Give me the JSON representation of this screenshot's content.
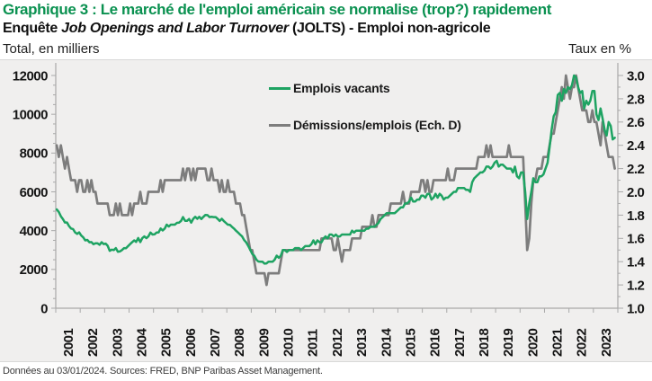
{
  "header": {
    "title": "Graphique 3 : Le marché de l'emploi américain se normalise (trop?) rapidement",
    "subtitle_prefix": "Enquête ",
    "subtitle_italic": "Job Openings and Labor Turnover",
    "subtitle_suffix": " (JOLTS) - Emploi non-agricole",
    "left_axis_caption": "Total, en milliers",
    "right_axis_caption": "Taux en %"
  },
  "footer": {
    "source_note": "Données au 03/01/2024. Sources: FRED, BNP Paribas Asset Management."
  },
  "colors": {
    "title_green": "#0a9150",
    "series_green": "#1ea362",
    "series_gray": "#7d7d7d",
    "axis": "#a9a9a9",
    "plot_background": "#f0efee"
  },
  "chart_data": {
    "type": "line",
    "title": "Graphique 3 : Le marché de l'emploi américain se normalise (trop?) rapidement",
    "subtitle": "Enquête Job Openings and Labor Turnover (JOLTS) - Emploi non-agricole",
    "frequency": "monthly",
    "x_start": "2001-01",
    "x_end": "2023-11",
    "x_tick_labels": [
      "2001",
      "2002",
      "2003",
      "2004",
      "2005",
      "2006",
      "2007",
      "2008",
      "2009",
      "2010",
      "2011",
      "2012",
      "2013",
      "2014",
      "2015",
      "2016",
      "2017",
      "2018",
      "2019",
      "2020",
      "2021",
      "2022",
      "2023"
    ],
    "left_axis": {
      "label": "Total, en milliers",
      "min": 0,
      "max": 12000,
      "major_step": 2000,
      "minor_step": 500
    },
    "right_axis": {
      "label": "Taux en %",
      "min": 1.0,
      "max": 3.0,
      "major_step": 0.2,
      "minor_step": 0.1
    },
    "legend_position": "upper-center",
    "grid": false,
    "series": [
      {
        "name": "Emplois vacants",
        "axis": "left",
        "color": "#1ea362",
        "values": [
          5090,
          4960,
          4740,
          4600,
          4420,
          4420,
          4240,
          4110,
          4080,
          3910,
          3830,
          3910,
          3750,
          3650,
          3500,
          3520,
          3400,
          3410,
          3300,
          3350,
          3350,
          3270,
          3400,
          3310,
          3330,
          3220,
          2960,
          3020,
          3000,
          3100,
          2910,
          2930,
          3000,
          3100,
          3090,
          3200,
          3310,
          3400,
          3500,
          3420,
          3620,
          3410,
          3610,
          3700,
          3610,
          3700,
          3900,
          3800,
          3810,
          3900,
          3910,
          4110,
          4010,
          4110,
          4310,
          4210,
          4310,
          4310,
          4310,
          4400,
          4410,
          4500,
          4700,
          4510,
          4510,
          4600,
          4410,
          4610,
          4710,
          4610,
          4710,
          4600,
          4710,
          4810,
          4800,
          4700,
          4710,
          4700,
          4700,
          4610,
          4500,
          4610,
          4500,
          4400,
          4310,
          4300,
          4200,
          4110,
          4000,
          3900,
          3800,
          3700,
          3510,
          3400,
          3210,
          3010,
          2800,
          2700,
          2500,
          2410,
          2400,
          2400,
          2300,
          2310,
          2400,
          2400,
          2400,
          2500,
          2710,
          2600,
          2700,
          3000,
          3000,
          2900,
          3000,
          3000,
          3000,
          3100,
          3100,
          3100,
          3000,
          3100,
          3200,
          3200,
          3200,
          3300,
          3500,
          3300,
          3500,
          3400,
          3400,
          3600,
          3700,
          3600,
          3800,
          3800,
          3700,
          3800,
          3700,
          3700,
          3800,
          3800,
          3800,
          3800,
          3800,
          4000,
          3900,
          4000,
          4000,
          4000,
          4000,
          4000,
          4100,
          4100,
          4200,
          4200,
          4200,
          4300,
          4400,
          4600,
          4700,
          4800,
          4900,
          4900,
          4900,
          4900,
          4900,
          5000,
          5100,
          5200,
          5200,
          5400,
          5400,
          5500,
          5700,
          5500,
          5500,
          5600,
          5600,
          5800,
          5800,
          5700,
          5900,
          5900,
          5600,
          5700,
          5900,
          5700,
          5900,
          5800,
          5600,
          5700,
          5700,
          5800,
          5900,
          6000,
          6000,
          6200,
          6200,
          6200,
          6200,
          6100,
          6100,
          6000,
          6500,
          6700,
          6800,
          6900,
          7000,
          7000,
          7100,
          7300,
          7300,
          7200,
          7300,
          7500,
          7600,
          7300,
          7400,
          7400,
          7300,
          7200,
          7200,
          7200,
          7000,
          7300,
          6800,
          6700,
          7000,
          7000,
          6000,
          4600,
          5400,
          6000,
          6700,
          6500,
          6500,
          6800,
          6800,
          6900,
          7200,
          7500,
          8300,
          9200,
          9900,
          10100,
          11000,
          11100,
          10700,
          11300,
          11100,
          11400,
          11300,
          11500,
          12000,
          11900,
          11400,
          11100,
          11200,
          10300,
          10700,
          10500,
          10700,
          11200,
          11200,
          10000,
          9700,
          10300,
          9800,
          9200,
          8900,
          9600,
          9400,
          8700,
          8790
        ]
      },
      {
        "name": "Démissions/emplois (Ech. D)",
        "axis": "right",
        "color": "#7d7d7d",
        "values": [
          2.4,
          2.3,
          2.4,
          2.3,
          2.2,
          2.3,
          2.2,
          2.1,
          2.1,
          2.1,
          2.0,
          2.1,
          2.1,
          2.0,
          2.0,
          2.1,
          2.0,
          2.1,
          2.0,
          2.0,
          1.9,
          1.9,
          1.9,
          1.9,
          1.9,
          1.9,
          1.8,
          1.8,
          1.8,
          1.9,
          1.8,
          1.9,
          1.8,
          1.8,
          1.8,
          1.8,
          1.9,
          1.8,
          1.9,
          1.9,
          1.9,
          2.0,
          1.9,
          1.9,
          1.9,
          2.0,
          2.0,
          2.0,
          2.0,
          2.0,
          2.0,
          2.1,
          2.0,
          2.1,
          2.1,
          2.1,
          2.1,
          2.1,
          2.1,
          2.1,
          2.1,
          2.1,
          2.2,
          2.1,
          2.2,
          2.2,
          2.1,
          2.2,
          2.1,
          2.2,
          2.2,
          2.2,
          2.2,
          2.2,
          2.1,
          2.1,
          2.2,
          2.1,
          2.1,
          2.1,
          2.0,
          2.1,
          2.0,
          2.0,
          2.1,
          2.0,
          2.0,
          2.0,
          1.9,
          1.9,
          1.9,
          1.8,
          1.8,
          1.7,
          1.6,
          1.5,
          1.5,
          1.4,
          1.3,
          1.3,
          1.3,
          1.3,
          1.3,
          1.2,
          1.3,
          1.3,
          1.3,
          1.3,
          1.3,
          1.3,
          1.4,
          1.5,
          1.5,
          1.5,
          1.5,
          1.5,
          1.5,
          1.5,
          1.5,
          1.5,
          1.5,
          1.5,
          1.5,
          1.5,
          1.5,
          1.5,
          1.5,
          1.5,
          1.5,
          1.5,
          1.6,
          1.6,
          1.6,
          1.6,
          1.6,
          1.6,
          1.5,
          1.5,
          1.6,
          1.5,
          1.4,
          1.5,
          1.5,
          1.5,
          1.5,
          1.6,
          1.6,
          1.6,
          1.6,
          1.6,
          1.7,
          1.7,
          1.7,
          1.7,
          1.7,
          1.8,
          1.7,
          1.7,
          1.8,
          1.8,
          1.8,
          1.8,
          1.8,
          1.8,
          1.9,
          1.9,
          1.9,
          1.9,
          1.9,
          1.9,
          2.0,
          1.9,
          1.9,
          1.9,
          2.0,
          2.0,
          2.0,
          2.0,
          2.0,
          2.1,
          2.1,
          2.0,
          2.1,
          2.0,
          2.0,
          2.1,
          2.1,
          2.1,
          2.1,
          2.1,
          2.1,
          2.1,
          2.2,
          2.1,
          2.1,
          2.1,
          2.2,
          2.2,
          2.2,
          2.2,
          2.2,
          2.2,
          2.2,
          2.2,
          2.2,
          2.2,
          2.2,
          2.3,
          2.3,
          2.3,
          2.3,
          2.4,
          2.3,
          2.4,
          2.3,
          2.3,
          2.3,
          2.3,
          2.3,
          2.3,
          2.3,
          2.3,
          2.4,
          2.3,
          2.3,
          2.3,
          2.3,
          2.3,
          2.3,
          2.3,
          1.9,
          1.5,
          1.6,
          1.9,
          2.1,
          2.1,
          2.2,
          2.2,
          2.2,
          2.3,
          2.3,
          2.3,
          2.4,
          2.5,
          2.5,
          2.6,
          2.7,
          2.8,
          2.9,
          2.8,
          3.0,
          2.9,
          2.8,
          2.9,
          2.9,
          3.0,
          2.9,
          2.8,
          2.7,
          2.7,
          2.7,
          2.6,
          2.6,
          2.7,
          2.6,
          2.6,
          2.5,
          2.4,
          2.6,
          2.5,
          2.4,
          2.3,
          2.3,
          2.3,
          2.2
        ]
      }
    ]
  }
}
